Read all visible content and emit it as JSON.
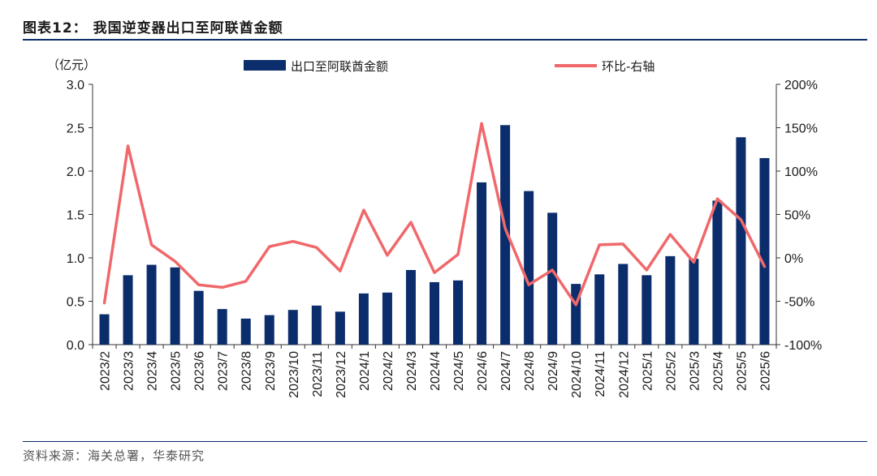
{
  "header": {
    "title": "图表12：  我国逆变器出口至阿联酋金额"
  },
  "footer": {
    "source": "资料来源：海关总署，华泰研究"
  },
  "colors": {
    "bar": "#0b2d6b",
    "line": "#f0686b",
    "rule": "#0b2d6b"
  },
  "chart_data": {
    "type": "bar",
    "title": "",
    "left_axis_unit": "（亿元）",
    "ylim_left": [
      0,
      3.0
    ],
    "yticks_left": [
      "0.0",
      "0.5",
      "1.0",
      "1.5",
      "2.0",
      "2.5",
      "3.0"
    ],
    "ylim_right": [
      -100,
      200
    ],
    "yticks_right": [
      "-100%",
      "-50%",
      "0%",
      "50%",
      "100%",
      "150%",
      "200%"
    ],
    "legend_position": "top",
    "categories": [
      "2023/2",
      "2023/3",
      "2023/4",
      "2023/5",
      "2023/6",
      "2023/7",
      "2023/8",
      "2023/9",
      "2023/10",
      "2023/11",
      "2023/12",
      "2024/1",
      "2024/2",
      "2024/3",
      "2024/4",
      "2024/5",
      "2024/6",
      "2024/7",
      "2024/8",
      "2024/9",
      "2024/10",
      "2024/11",
      "2024/12",
      "2025/1",
      "2025/2",
      "2025/3",
      "2025/4",
      "2025/5",
      "2025/6"
    ],
    "series": [
      {
        "name": "出口至阿联酋金额",
        "type": "bar",
        "axis": "left",
        "values": [
          0.35,
          0.8,
          0.92,
          0.89,
          0.62,
          0.41,
          0.3,
          0.34,
          0.4,
          0.45,
          0.38,
          0.59,
          0.6,
          0.86,
          0.72,
          0.74,
          1.87,
          2.53,
          1.77,
          1.52,
          0.7,
          0.81,
          0.93,
          0.8,
          1.02,
          0.99,
          1.66,
          2.39,
          2.15
        ]
      },
      {
        "name": "环比-右轴",
        "type": "line",
        "axis": "right",
        "values": [
          -52,
          129,
          15,
          -4,
          -31,
          -34,
          -27,
          13,
          19,
          12,
          -15,
          55,
          3,
          41,
          -17,
          4,
          155,
          34,
          -31,
          -14,
          -54,
          15,
          16,
          -14,
          27,
          -5,
          68,
          44,
          -10
        ]
      }
    ]
  }
}
